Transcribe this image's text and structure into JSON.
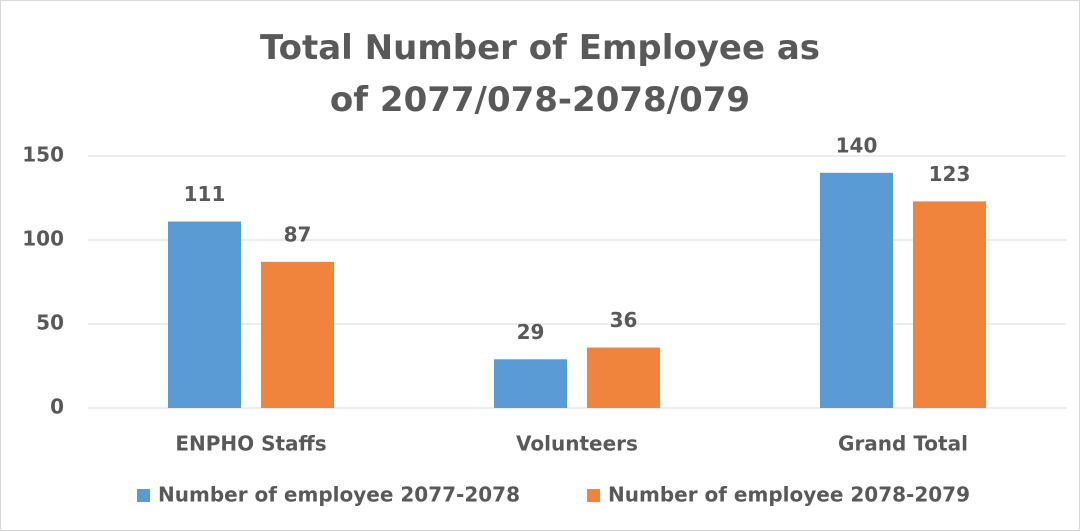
{
  "chart_data": {
    "type": "bar",
    "title": "Total Number of Employee as of 2077/078-2078/079",
    "categories": [
      "ENPHO Staffs",
      "Volunteers",
      "Grand Total"
    ],
    "series": [
      {
        "name": "Number of employee 2077-2078",
        "color": "#5b9bd5",
        "values": [
          111,
          29,
          140
        ]
      },
      {
        "name": "Number of employee 2078-2079",
        "color": "#f0843c",
        "values": [
          87,
          36,
          123
        ]
      }
    ],
    "ylim": [
      0,
      150
    ],
    "yticks": [
      0,
      50,
      100,
      150
    ],
    "grid": true,
    "legend": "bottom"
  }
}
